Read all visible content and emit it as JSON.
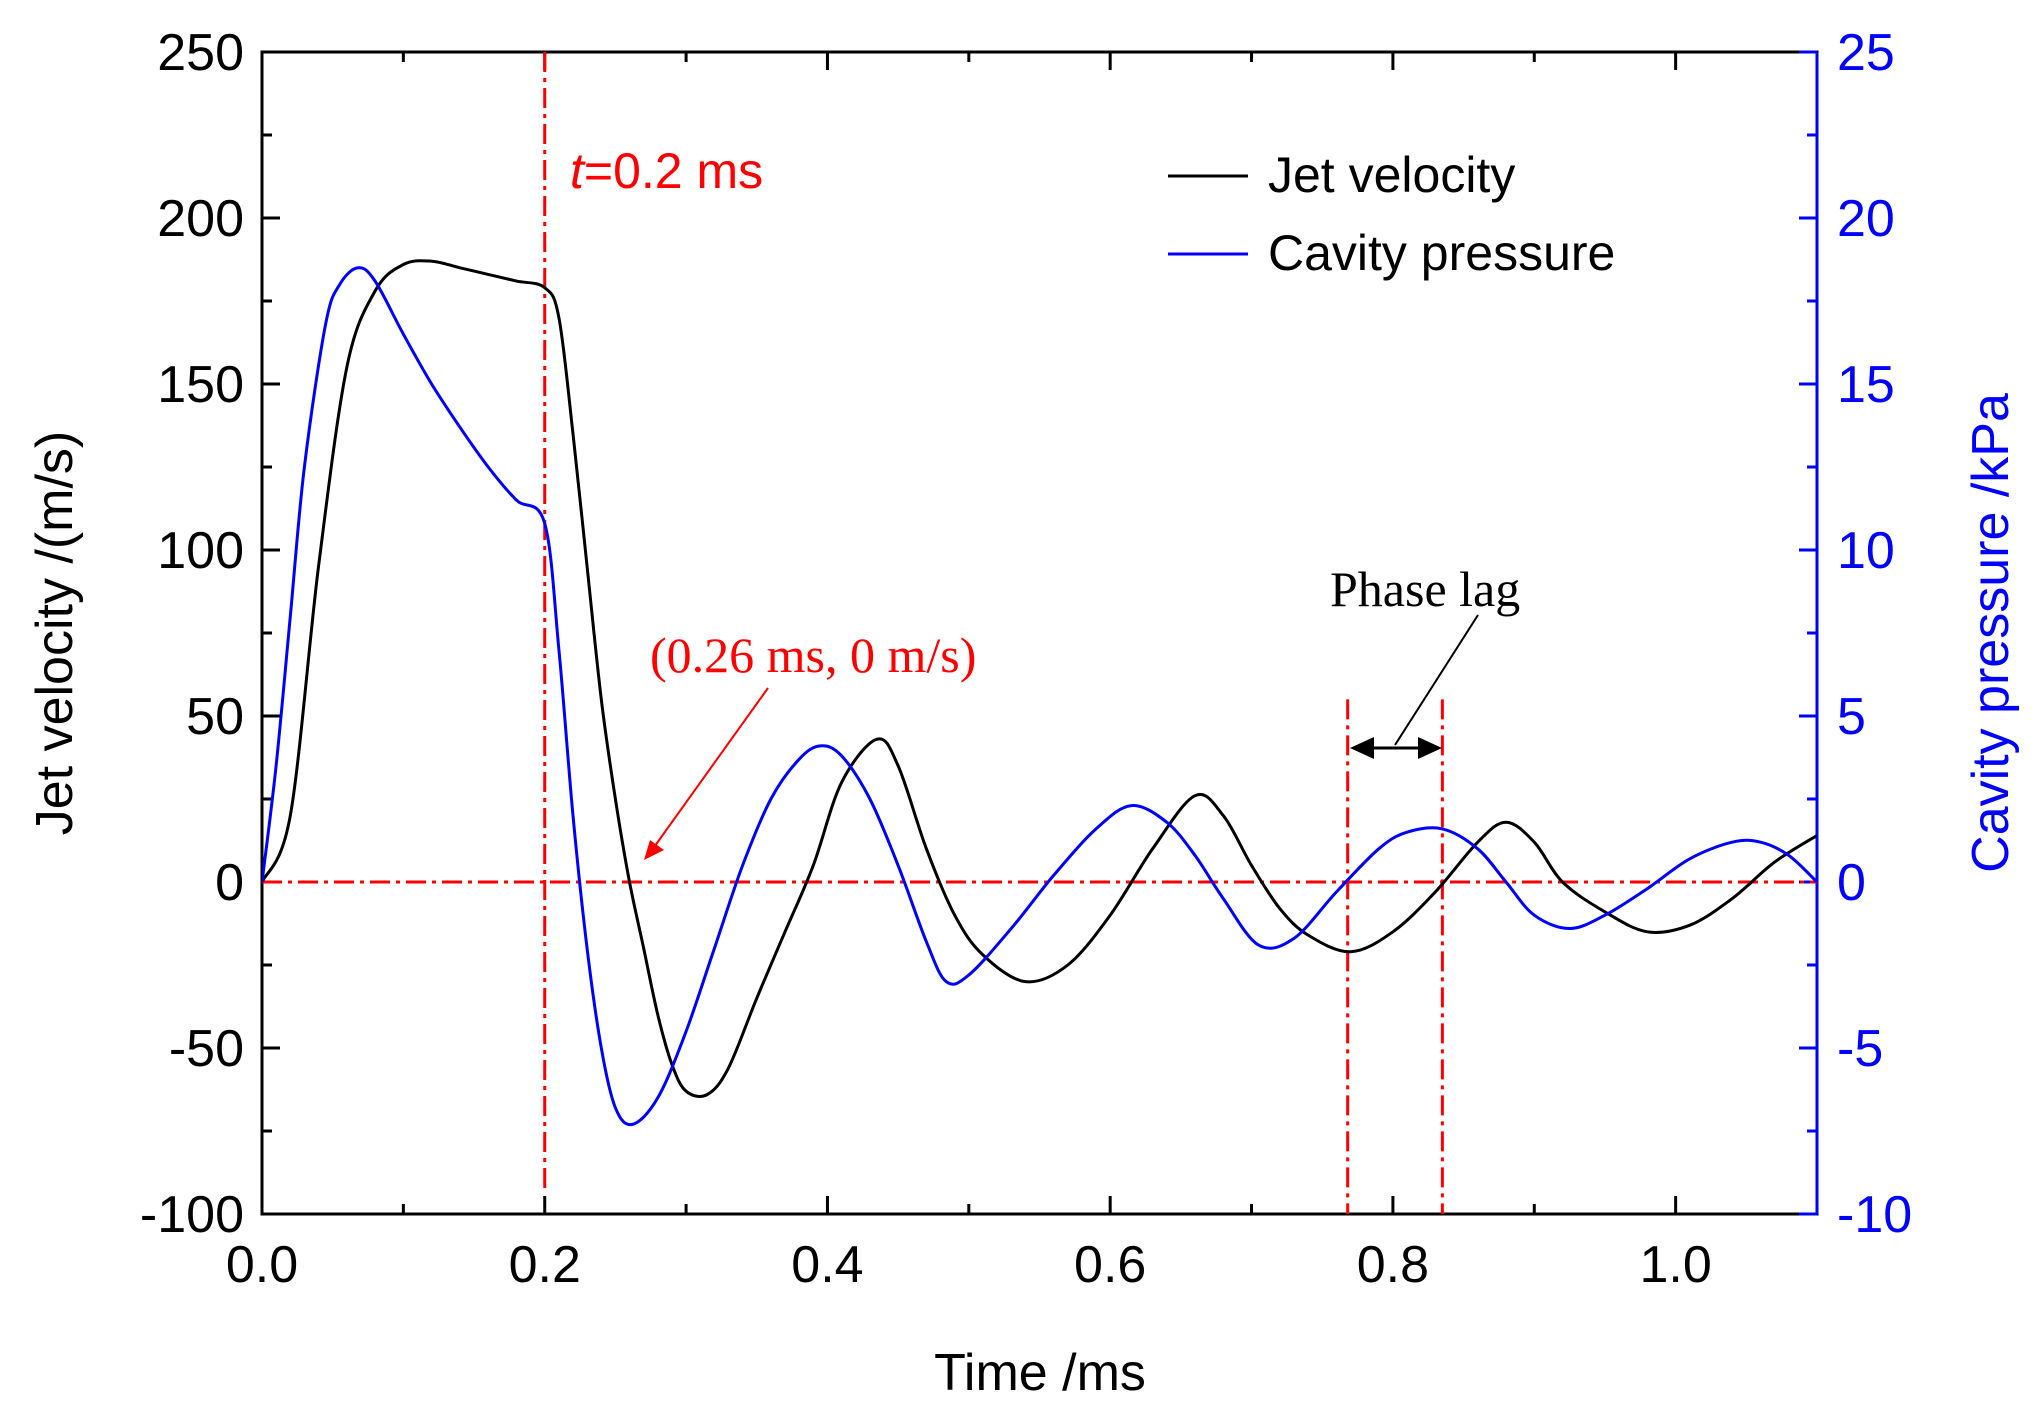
{
  "chart_data": {
    "type": "line",
    "xlabel": "Time /ms",
    "ylabel_left": "Jet velocity /(m/s)",
    "ylabel_right": "Cavity pressure /kPa",
    "xlim": [
      0,
      1.1
    ],
    "ylim_left": [
      -100,
      250
    ],
    "ylim_right": [
      -10,
      25
    ],
    "x_ticks": [
      0.0,
      0.2,
      0.4,
      0.6,
      0.8,
      1.0
    ],
    "x_tick_labels": [
      "0.0",
      "0.2",
      "0.4",
      "0.6",
      "0.8",
      "1.0"
    ],
    "y_left_ticks": [
      250,
      200,
      150,
      100,
      50,
      0,
      -50,
      -100
    ],
    "y_left_tick_labels": [
      "250",
      "200",
      "150",
      "100",
      "50",
      "0",
      "-50",
      "-100"
    ],
    "y_right_ticks": [
      25,
      20,
      15,
      10,
      5,
      0,
      -5,
      -10
    ],
    "y_right_tick_labels": [
      "25",
      "20",
      "15",
      "10",
      "5",
      "0",
      "-5",
      "-10"
    ],
    "colors": {
      "velocity": "#000000",
      "pressure": "#0000ff",
      "annotation": "#ff0000",
      "right_axis": "#0000ff"
    },
    "legend": {
      "position": "top-right",
      "entries": [
        {
          "name": "Jet velocity",
          "color": "#000000"
        },
        {
          "name": "Cavity pressure",
          "color": "#0000ff"
        }
      ]
    },
    "series": [
      {
        "name": "Jet velocity",
        "axis": "left",
        "color": "#000000",
        "x": [
          0,
          0.02,
          0.04,
          0.06,
          0.08,
          0.1,
          0.12,
          0.14,
          0.16,
          0.18,
          0.2,
          0.21,
          0.22,
          0.23,
          0.24,
          0.25,
          0.26,
          0.27,
          0.28,
          0.29,
          0.3,
          0.315,
          0.33,
          0.35,
          0.37,
          0.39,
          0.41,
          0.435,
          0.45,
          0.47,
          0.49,
          0.51,
          0.54,
          0.57,
          0.6,
          0.63,
          0.66,
          0.68,
          0.7,
          0.72,
          0.74,
          0.77,
          0.8,
          0.83,
          0.86,
          0.88,
          0.9,
          0.92,
          0.95,
          0.98,
          1.01,
          1.04,
          1.07,
          1.1
        ],
        "y": [
          0,
          20,
          95,
          155,
          178,
          186,
          187,
          185,
          183,
          181,
          179,
          170,
          135,
          95,
          55,
          25,
          0,
          -20,
          -40,
          -55,
          -63,
          -64,
          -56,
          -35,
          -15,
          5,
          30,
          43,
          35,
          10,
          -10,
          -22,
          -30,
          -25,
          -10,
          10,
          26,
          20,
          5,
          -8,
          -16,
          -21,
          -15,
          -3,
          12,
          18,
          12,
          0,
          -9,
          -15,
          -13,
          -5,
          6,
          14
        ]
      },
      {
        "name": "Cavity pressure",
        "axis": "right",
        "color": "#0000ff",
        "x": [
          0,
          0.01,
          0.02,
          0.03,
          0.045,
          0.055,
          0.068,
          0.08,
          0.1,
          0.12,
          0.14,
          0.16,
          0.18,
          0.2,
          0.21,
          0.22,
          0.23,
          0.24,
          0.25,
          0.262,
          0.28,
          0.3,
          0.32,
          0.34,
          0.36,
          0.38,
          0.395,
          0.41,
          0.43,
          0.45,
          0.47,
          0.484,
          0.5,
          0.53,
          0.56,
          0.59,
          0.615,
          0.64,
          0.66,
          0.68,
          0.705,
          0.73,
          0.76,
          0.79,
          0.81,
          0.835,
          0.86,
          0.88,
          0.9,
          0.925,
          0.95,
          0.98,
          1.01,
          1.04,
          1.06,
          1.08,
          1.1
        ],
        "y": [
          0,
          3.5,
          8,
          12.5,
          16.8,
          18,
          18.5,
          18.1,
          16.5,
          15,
          13.7,
          12.5,
          11.5,
          10.8,
          7,
          2,
          -2,
          -5,
          -6.8,
          -7.3,
          -6.5,
          -4.5,
          -2,
          0.5,
          2.5,
          3.7,
          4.1,
          3.8,
          2.5,
          0.5,
          -1.8,
          -3,
          -2.8,
          -1.4,
          0.2,
          1.6,
          2.3,
          1.8,
          0.8,
          -0.5,
          -1.9,
          -1.7,
          -0.3,
          1.0,
          1.5,
          1.6,
          1.0,
          0,
          -1.0,
          -1.4,
          -1.0,
          -0.2,
          0.7,
          1.2,
          1.2,
          0.8,
          0
        ]
      }
    ],
    "annotations": {
      "t_marker": {
        "italic": "t",
        "text": "=0.2 ms",
        "x": 0.2
      },
      "zero_point": {
        "text": "(0.26 ms, 0 m/s)",
        "x": 0.26,
        "y": 0
      },
      "phase_lag": {
        "text": "Phase lag",
        "x1": 0.768,
        "x2": 0.835
      }
    }
  }
}
